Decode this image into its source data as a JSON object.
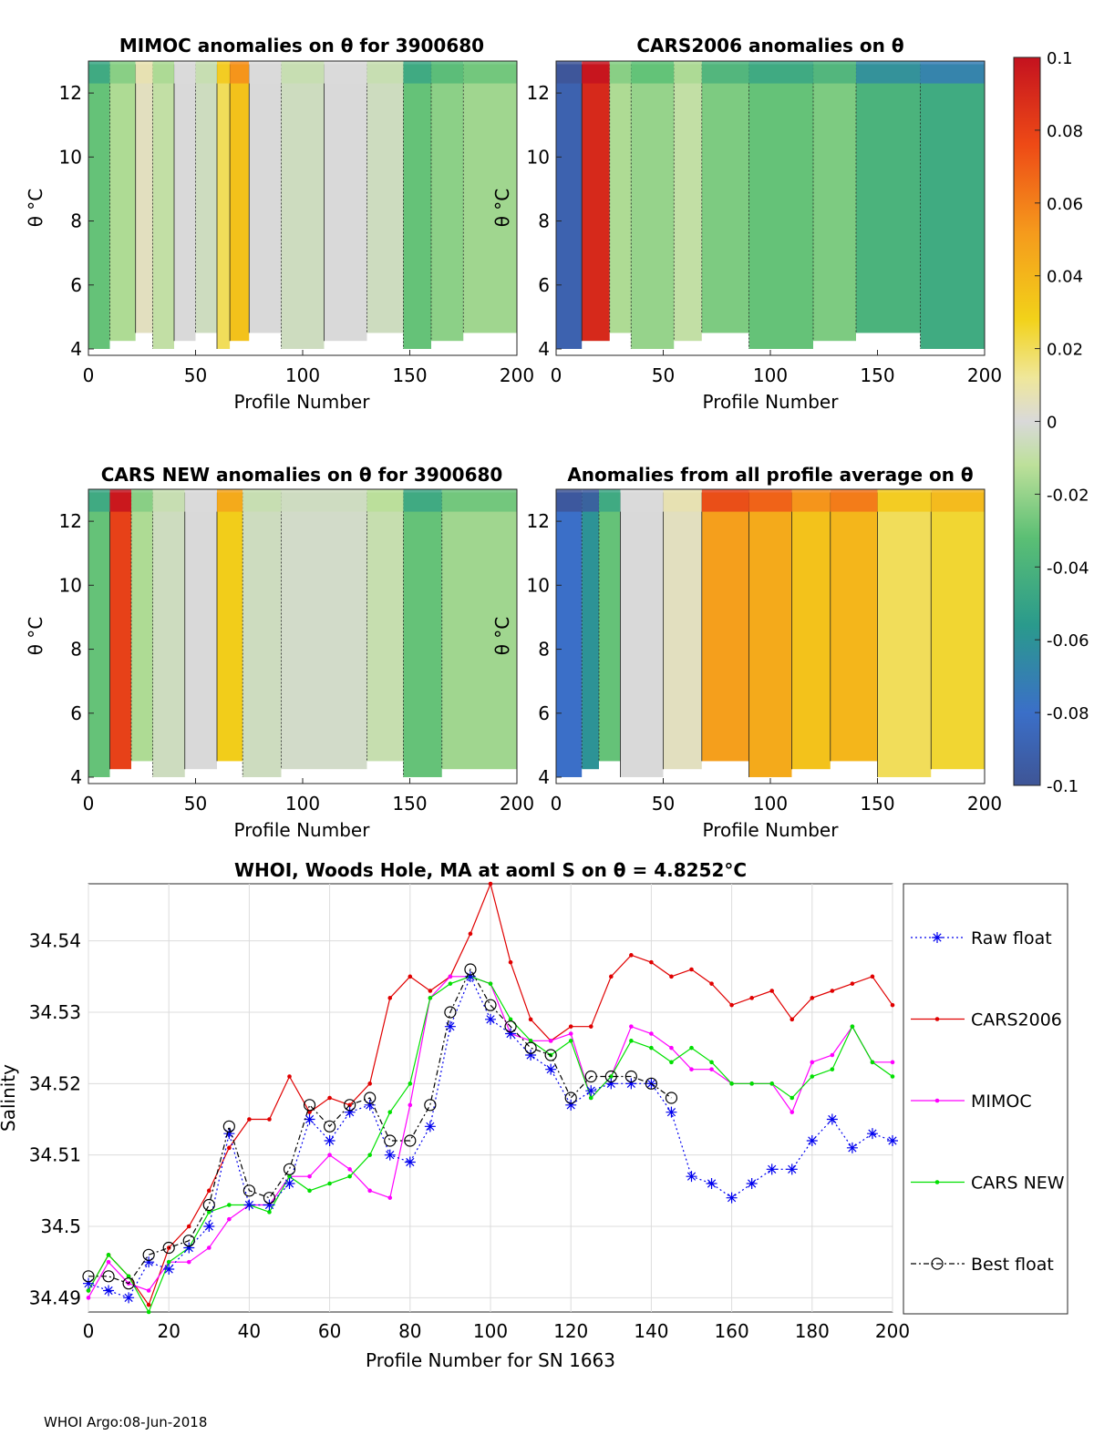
{
  "footer": "WHOI Argo:08-Jun-2018",
  "colorbar": {
    "ticks": [
      "0.1",
      "0.08",
      "0.06",
      "0.04",
      "0.02",
      "0",
      "-0.02",
      "-0.04",
      "-0.06",
      "-0.08",
      "-0.1"
    ],
    "range": [
      -0.1,
      0.1
    ]
  },
  "colors": {
    "axis": "#262626",
    "grid": "#dcdcdc",
    "raw": "#0000ee",
    "cars2006": "#e00000",
    "mimoc": "#ff00ff",
    "cars_new": "#00e000",
    "best": "#000000"
  },
  "chart_data": [
    {
      "type": "heatmap",
      "title": "MIMOC anomalies on θ  for 3900680",
      "xlabel": "Profile Number",
      "ylabel": "θ °C",
      "xlim": [
        0,
        200
      ],
      "ylim": [
        3.8,
        13
      ],
      "xticks": [
        "0",
        "50",
        "100",
        "150",
        "200"
      ],
      "yticks": [
        "4",
        "6",
        "8",
        "10",
        "12"
      ],
      "bands": [
        {
          "x0": 0,
          "x1": 10,
          "value": -0.03
        },
        {
          "x0": 10,
          "x1": 22,
          "value": -0.015
        },
        {
          "x0": 22,
          "x1": 30,
          "value": 0.005
        },
        {
          "x0": 30,
          "x1": 40,
          "value": -0.01
        },
        {
          "x0": 40,
          "x1": 50,
          "value": 0.0
        },
        {
          "x0": 50,
          "x1": 60,
          "value": -0.005
        },
        {
          "x0": 60,
          "x1": 66,
          "value": 0.02
        },
        {
          "x0": 66,
          "x1": 75,
          "value": 0.035
        },
        {
          "x0": 75,
          "x1": 90,
          "value": 0.0
        },
        {
          "x0": 90,
          "x1": 110,
          "value": -0.005
        },
        {
          "x0": 110,
          "x1": 130,
          "value": 0.0
        },
        {
          "x0": 130,
          "x1": 147,
          "value": -0.005
        },
        {
          "x0": 147,
          "x1": 160,
          "value": -0.03
        },
        {
          "x0": 160,
          "x1": 175,
          "value": -0.022
        },
        {
          "x0": 175,
          "x1": 200,
          "value": -0.018
        }
      ]
    },
    {
      "type": "heatmap",
      "title": "CARS2006 anomalies on θ",
      "xlabel": "Profile Number",
      "ylabel": "θ °C",
      "xlim": [
        0,
        200
      ],
      "ylim": [
        3.8,
        13
      ],
      "xticks": [
        "0",
        "50",
        "100",
        "150",
        "200"
      ],
      "yticks": [
        "4",
        "6",
        "8",
        "10",
        "12"
      ],
      "bands": [
        {
          "x0": 0,
          "x1": 12,
          "value": -0.09
        },
        {
          "x0": 12,
          "x1": 25,
          "value": 0.09
        },
        {
          "x0": 25,
          "x1": 35,
          "value": -0.015
        },
        {
          "x0": 35,
          "x1": 55,
          "value": -0.02
        },
        {
          "x0": 55,
          "x1": 68,
          "value": -0.01
        },
        {
          "x0": 68,
          "x1": 90,
          "value": -0.025
        },
        {
          "x0": 90,
          "x1": 120,
          "value": -0.03
        },
        {
          "x0": 120,
          "x1": 140,
          "value": -0.025
        },
        {
          "x0": 140,
          "x1": 170,
          "value": -0.04
        },
        {
          "x0": 170,
          "x1": 200,
          "value": -0.045
        }
      ]
    },
    {
      "type": "heatmap",
      "title": "CARS NEW anomalies on θ for 3900680",
      "xlabel": "Profile Number",
      "ylabel": "θ °C",
      "xlim": [
        0,
        200
      ],
      "ylim": [
        3.8,
        13
      ],
      "xticks": [
        "0",
        "50",
        "100",
        "150",
        "200"
      ],
      "yticks": [
        "4",
        "6",
        "8",
        "10",
        "12"
      ],
      "bands": [
        {
          "x0": 0,
          "x1": 10,
          "value": -0.03
        },
        {
          "x0": 10,
          "x1": 20,
          "value": 0.08
        },
        {
          "x0": 20,
          "x1": 30,
          "value": -0.015
        },
        {
          "x0": 30,
          "x1": 45,
          "value": -0.005
        },
        {
          "x0": 45,
          "x1": 60,
          "value": 0.0
        },
        {
          "x0": 60,
          "x1": 72,
          "value": 0.03
        },
        {
          "x0": 72,
          "x1": 90,
          "value": -0.005
        },
        {
          "x0": 90,
          "x1": 130,
          "value": -0.003
        },
        {
          "x0": 130,
          "x1": 147,
          "value": -0.008
        },
        {
          "x0": 147,
          "x1": 165,
          "value": -0.03
        },
        {
          "x0": 165,
          "x1": 200,
          "value": -0.018
        }
      ]
    },
    {
      "type": "heatmap",
      "title": "Anomalies from all profile average on θ",
      "xlabel": "Profile Number",
      "ylabel": "θ °C",
      "xlim": [
        0,
        200
      ],
      "ylim": [
        3.8,
        13
      ],
      "xticks": [
        "0",
        "50",
        "100",
        "150",
        "200"
      ],
      "yticks": [
        "4",
        "6",
        "8",
        "10",
        "12"
      ],
      "bands": [
        {
          "x0": 0,
          "x1": 12,
          "value": -0.08
        },
        {
          "x0": 12,
          "x1": 20,
          "value": -0.06
        },
        {
          "x0": 20,
          "x1": 30,
          "value": -0.03
        },
        {
          "x0": 30,
          "x1": 50,
          "value": 0.0
        },
        {
          "x0": 50,
          "x1": 68,
          "value": 0.005
        },
        {
          "x0": 68,
          "x1": 90,
          "value": 0.05
        },
        {
          "x0": 90,
          "x1": 110,
          "value": 0.045
        },
        {
          "x0": 110,
          "x1": 128,
          "value": 0.035
        },
        {
          "x0": 128,
          "x1": 150,
          "value": 0.04
        },
        {
          "x0": 150,
          "x1": 175,
          "value": 0.02
        },
        {
          "x0": 175,
          "x1": 200,
          "value": 0.025
        }
      ]
    },
    {
      "type": "line",
      "title": "WHOI, Woods Hole, MA at aoml S on θ = 4.8252°C",
      "xlabel": "Profile Number for SN 1663",
      "ylabel": "Salinity",
      "xlim": [
        0,
        200
      ],
      "ylim": [
        34.488,
        34.548
      ],
      "xticks": [
        0,
        20,
        40,
        60,
        80,
        100,
        120,
        140,
        160,
        180,
        200
      ],
      "xtick_labels": [
        "0",
        "20",
        "40",
        "60",
        "80",
        "100",
        "120",
        "140",
        "160",
        "180",
        "200"
      ],
      "yticks": [
        34.49,
        34.5,
        34.51,
        34.52,
        34.53,
        34.54
      ],
      "ytick_labels": [
        "34.49",
        "34.5",
        "34.51",
        "34.52",
        "34.53",
        "34.54"
      ],
      "legend": [
        "Raw float",
        "CARS2006",
        "MIMOC",
        "CARS NEW",
        "Best float"
      ],
      "series": [
        {
          "name": "Raw float",
          "x": [
            0,
            5,
            10,
            15,
            20,
            25,
            30,
            35,
            40,
            45,
            50,
            55,
            60,
            65,
            70,
            75,
            80,
            85,
            90,
            95,
            100,
            105,
            110,
            115,
            120,
            125,
            130,
            135,
            140,
            145,
            150,
            155,
            160,
            165,
            170,
            175,
            180,
            185,
            190,
            195,
            200
          ],
          "values": [
            34.492,
            34.491,
            34.49,
            34.495,
            34.494,
            34.497,
            34.5,
            34.513,
            34.503,
            34.503,
            34.506,
            34.515,
            34.512,
            34.516,
            34.517,
            34.51,
            34.509,
            34.514,
            34.528,
            34.535,
            34.529,
            34.527,
            34.524,
            34.522,
            34.517,
            34.519,
            34.52,
            34.52,
            34.52,
            34.516,
            34.507,
            34.506,
            34.504,
            34.506,
            34.508,
            34.508,
            34.512,
            34.515,
            34.511,
            34.513,
            34.512
          ]
        },
        {
          "name": "CARS2006",
          "x": [
            0,
            5,
            10,
            15,
            20,
            25,
            30,
            35,
            40,
            45,
            50,
            55,
            60,
            65,
            70,
            75,
            80,
            85,
            90,
            95,
            100,
            105,
            110,
            115,
            120,
            125,
            130,
            135,
            140,
            145,
            150,
            155,
            160,
            165,
            170,
            175,
            180,
            185,
            190,
            195,
            200
          ],
          "values": [
            34.491,
            34.496,
            34.493,
            34.489,
            34.497,
            34.5,
            34.505,
            34.511,
            34.515,
            34.515,
            34.521,
            34.516,
            34.518,
            34.517,
            34.52,
            34.532,
            34.535,
            34.533,
            34.535,
            34.541,
            34.548,
            34.537,
            34.529,
            34.526,
            34.528,
            34.528,
            34.535,
            34.538,
            34.537,
            34.535,
            34.536,
            34.534,
            34.531,
            34.532,
            34.533,
            34.529,
            34.532,
            34.533,
            34.534,
            34.535,
            34.531
          ]
        },
        {
          "name": "MIMOC",
          "x": [
            0,
            5,
            10,
            15,
            20,
            25,
            30,
            35,
            40,
            45,
            50,
            55,
            60,
            65,
            70,
            75,
            80,
            85,
            90,
            95,
            100,
            105,
            110,
            115,
            120,
            125,
            130,
            135,
            140,
            145,
            150,
            155,
            160,
            165,
            170,
            175,
            180,
            185,
            190,
            195,
            200
          ],
          "values": [
            34.49,
            34.495,
            34.492,
            34.491,
            34.495,
            34.495,
            34.497,
            34.501,
            34.503,
            34.503,
            34.507,
            34.507,
            34.51,
            34.508,
            34.505,
            34.504,
            34.517,
            34.532,
            34.535,
            34.535,
            34.534,
            34.527,
            34.526,
            34.526,
            34.527,
            34.518,
            34.521,
            34.528,
            34.527,
            34.525,
            34.522,
            34.522,
            34.52,
            34.52,
            34.52,
            34.516,
            34.523,
            34.524,
            34.528,
            34.523,
            34.523
          ]
        },
        {
          "name": "CARS NEW",
          "x": [
            0,
            5,
            10,
            15,
            20,
            25,
            30,
            35,
            40,
            45,
            50,
            55,
            60,
            65,
            70,
            75,
            80,
            85,
            90,
            95,
            100,
            105,
            110,
            115,
            120,
            125,
            130,
            135,
            140,
            145,
            150,
            155,
            160,
            165,
            170,
            175,
            180,
            185,
            190,
            195,
            200
          ],
          "values": [
            34.491,
            34.496,
            34.493,
            34.488,
            34.495,
            34.497,
            34.502,
            34.503,
            34.503,
            34.502,
            34.507,
            34.505,
            34.506,
            34.507,
            34.51,
            34.516,
            34.52,
            34.532,
            34.534,
            34.535,
            34.534,
            34.529,
            34.526,
            34.524,
            34.526,
            34.518,
            34.521,
            34.526,
            34.525,
            34.523,
            34.525,
            34.523,
            34.52,
            34.52,
            34.52,
            34.518,
            34.521,
            34.522,
            34.528,
            34.523,
            34.521
          ]
        },
        {
          "name": "Best float",
          "x": [
            0,
            5,
            10,
            15,
            20,
            25,
            30,
            35,
            40,
            45,
            50,
            55,
            60,
            65,
            70,
            75,
            80,
            85,
            90,
            95,
            100,
            105,
            110,
            115,
            120,
            125,
            130,
            135,
            140,
            145
          ],
          "values": [
            34.493,
            34.493,
            34.492,
            34.496,
            34.497,
            34.498,
            34.503,
            34.514,
            34.505,
            34.504,
            34.508,
            34.517,
            34.514,
            34.517,
            34.518,
            34.512,
            34.512,
            34.517,
            34.53,
            34.536,
            34.531,
            34.528,
            34.525,
            34.524,
            34.518,
            34.521,
            34.521,
            34.521,
            34.52,
            34.518
          ]
        }
      ]
    }
  ]
}
